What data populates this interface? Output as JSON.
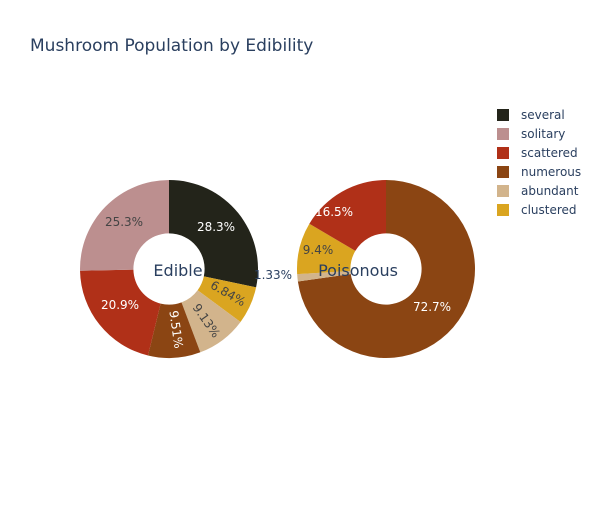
{
  "chart_data": {
    "type": "pie",
    "title": "Mushroom Population by Edibility",
    "legend": {
      "position": "top-right",
      "entries": [
        {
          "name": "several",
          "color": "#23241a"
        },
        {
          "name": "solitary",
          "color": "#bc8f8f"
        },
        {
          "name": "scattered",
          "color": "#b03018"
        },
        {
          "name": "numerous",
          "color": "#8b4513"
        },
        {
          "name": "abundant",
          "color": "#d2b48c"
        },
        {
          "name": "clustered",
          "color": "#daa520"
        }
      ]
    },
    "charts": [
      {
        "name": "Edible",
        "hole": 0.4,
        "slices": [
          {
            "category": "several",
            "value": 28.3,
            "label": "28.3%",
            "label_color": "#ffffff"
          },
          {
            "category": "clustered",
            "value": 6.84,
            "label": "6.84%",
            "label_color": "#444444"
          },
          {
            "category": "abundant",
            "value": 9.13,
            "label": "9.13%",
            "label_color": "#444444"
          },
          {
            "category": "numerous",
            "value": 9.51,
            "label": "9.51%",
            "label_color": "#ffffff"
          },
          {
            "category": "scattered",
            "value": 20.9,
            "label": "20.9%",
            "label_color": "#ffffff"
          },
          {
            "category": "solitary",
            "value": 25.3,
            "label": "25.3%",
            "label_color": "#444444"
          }
        ]
      },
      {
        "name": "Poisonous",
        "hole": 0.4,
        "slices": [
          {
            "category": "numerous",
            "value": 72.7,
            "label": "72.7%",
            "label_color": "#ffffff"
          },
          {
            "category": "abundant",
            "value": 1.33,
            "label": "1.33%",
            "label_color": "#2a3f5f"
          },
          {
            "category": "clustered",
            "value": 9.4,
            "label": "9.4%",
            "label_color": "#444444"
          },
          {
            "category": "scattered",
            "value": 16.5,
            "label": "16.5%",
            "label_color": "#ffffff"
          }
        ]
      }
    ]
  }
}
